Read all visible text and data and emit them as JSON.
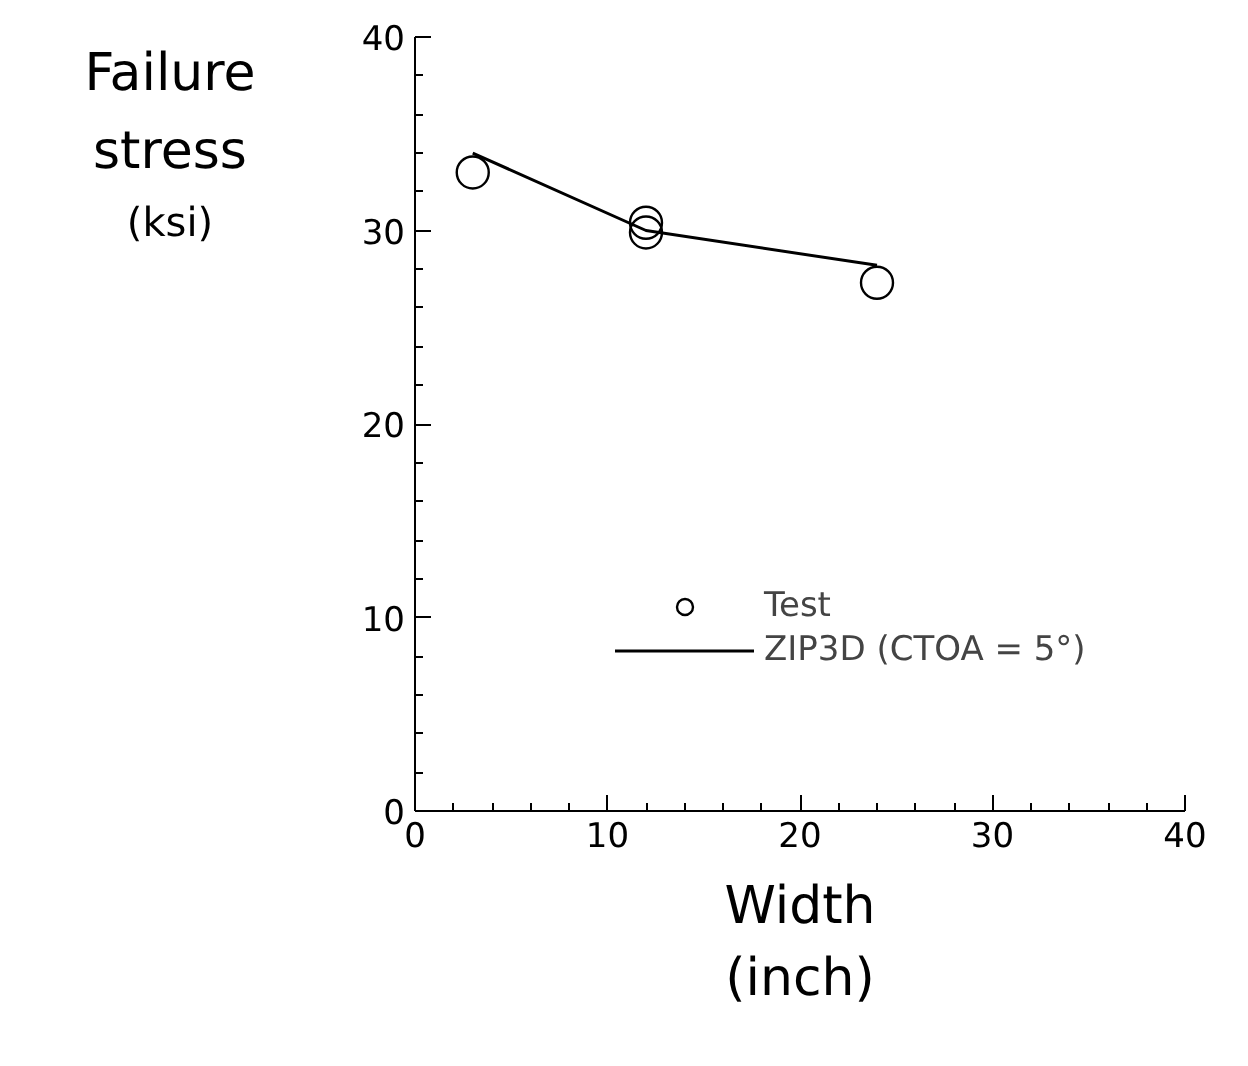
{
  "chart_data": {
    "type": "scatter",
    "xlabel": "Width (inch)",
    "ylabel": "Failure stress (ksi)",
    "series": [
      {
        "name": "Test",
        "marker": "circle",
        "color": "#000000",
        "x": [
          3,
          12,
          12,
          24
        ],
        "values": [
          33,
          30.4,
          29.9,
          27.3
        ]
      },
      {
        "name": "ZIP3D (CTOA = 5°)",
        "type": "line",
        "marker": "none",
        "color": "#000000",
        "x": [
          3,
          12,
          24
        ],
        "values": [
          34,
          30,
          28.2
        ]
      }
    ],
    "xlim": [
      0,
      40
    ],
    "ylim": [
      0,
      40
    ],
    "xticks": [
      0,
      10,
      20,
      30,
      40
    ],
    "yticks": [
      0,
      10,
      20,
      30,
      40
    ],
    "line_style": "solid",
    "grid": false,
    "legend": "bottom right"
  }
}
